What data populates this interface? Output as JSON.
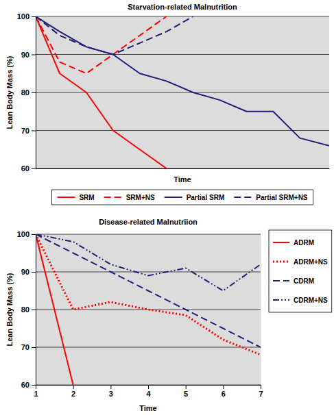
{
  "chart_data": [
    {
      "type": "line",
      "title": "Starvation-related Malnutrition",
      "x_label": "Time",
      "y_label": "Lean Body Mass (%)",
      "x": [
        0,
        0.9,
        1.9,
        2.9,
        3.9,
        4.9,
        5.9,
        6.9,
        7.9,
        8.9,
        9.9,
        11
      ],
      "xlim": [
        0,
        11
      ],
      "ylim": [
        60,
        100
      ],
      "yticks": [
        60,
        70,
        80,
        90,
        100
      ],
      "grid": true,
      "legend": "bottom",
      "tick_labels": "y",
      "series": [
        {
          "name": "SRM",
          "color": "#ff0000",
          "line_style": "solid",
          "values": [
            100,
            85,
            80,
            70,
            65,
            60,
            null,
            null,
            null,
            null,
            null,
            null
          ]
        },
        {
          "name": "SRM+NS",
          "color": "#ff0000",
          "line_style": "dashed",
          "values": [
            100,
            88,
            85,
            90,
            95,
            100,
            null,
            null,
            null,
            null,
            null,
            null
          ]
        },
        {
          "name": "Partial SRM",
          "color": "#1f1f7a",
          "line_style": "solid",
          "values": [
            100,
            96,
            92,
            90,
            85,
            83,
            80,
            78,
            75,
            75,
            68,
            66
          ]
        },
        {
          "name": "Partial SRM+NS",
          "color": "#1f1f7a",
          "line_style": "dashed",
          "values": [
            100,
            95,
            92,
            90,
            93,
            96,
            100,
            null,
            null,
            null,
            null,
            null
          ]
        }
      ]
    },
    {
      "type": "line",
      "title": "Disease-related Malnutriion",
      "x_label": "Time",
      "y_label": "Lean Body Mass (%)",
      "x": [
        1,
        2,
        3,
        4,
        5,
        6,
        7
      ],
      "xlim": [
        1,
        7
      ],
      "xticks": [
        1,
        2,
        3,
        4,
        5,
        6,
        7
      ],
      "ylim": [
        60,
        100
      ],
      "yticks": [
        60,
        70,
        80,
        90,
        100
      ],
      "grid": true,
      "legend": "right",
      "series": [
        {
          "name": "ADRM",
          "color": "#ff0000",
          "line_style": "solid",
          "values": [
            100,
            60,
            null,
            null,
            null,
            null,
            null
          ]
        },
        {
          "name": "ADRM+NS",
          "color": "#ff0000",
          "line_style": "dotted",
          "values": [
            100,
            80,
            82,
            80,
            78.5,
            72,
            68
          ]
        },
        {
          "name": "CDRM",
          "color": "#1f1f7a",
          "line_style": "dashed",
          "values": [
            100,
            95,
            90,
            85,
            80,
            75,
            70
          ]
        },
        {
          "name": "CDRM+NS",
          "color": "#1f1f7a",
          "line_style": "dashdot",
          "values": [
            100,
            98,
            92,
            89,
            91,
            85,
            92
          ]
        }
      ]
    }
  ]
}
